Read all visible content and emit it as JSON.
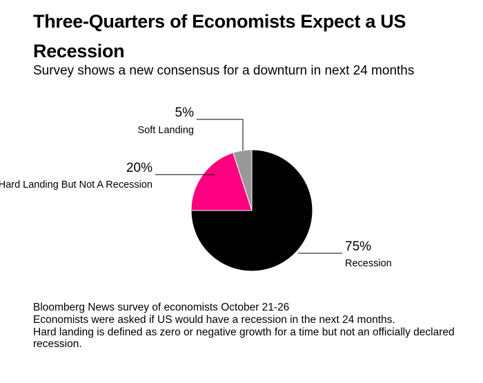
{
  "title": "Three-Quarters of Economists Expect a US Recession",
  "subtitle": "Survey shows a new consensus for a downturn in next 24 months",
  "chart_data": {
    "type": "pie",
    "slices": [
      {
        "label": "Recession",
        "value": 75,
        "value_label": "75%",
        "color": "#000000"
      },
      {
        "label": "Hard Landing But Not A Recession",
        "value": 20,
        "value_label": "20%",
        "color": "#ff0080"
      },
      {
        "label": "Soft Landing",
        "value": 5,
        "value_label": "5%",
        "color": "#999999"
      }
    ]
  },
  "notes": [
    "Bloomberg News survey of economists October 21-26",
    "Economists were asked if US would have a recession in the next 24 months.",
    "Hard landing is defined as zero or negative growth for a time but not an officially declared recession."
  ]
}
